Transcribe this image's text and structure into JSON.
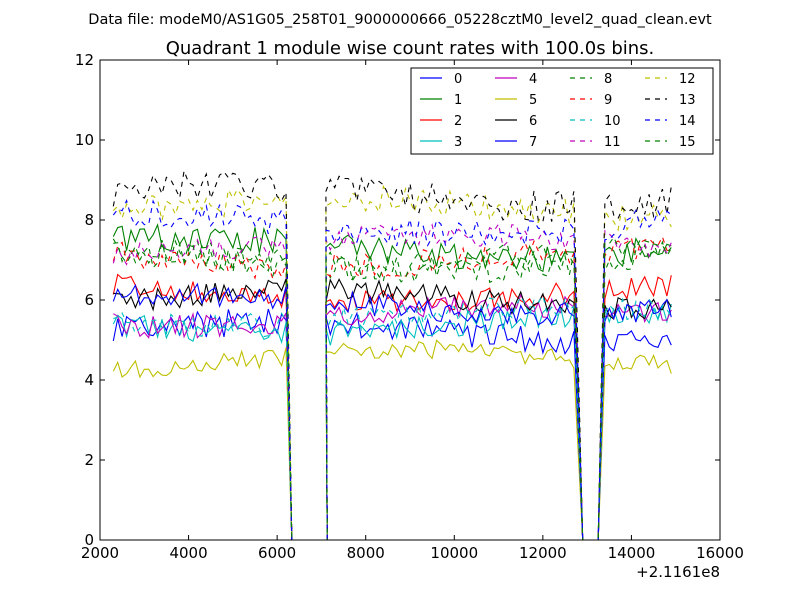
{
  "figure": {
    "suptitle": "Data file: modeM0/AS1G05_258T01_9000000666_05228cztM0_level2_quad_clean.evt"
  },
  "chart_data": {
    "type": "line",
    "title": "Quadrant 1 module wise count rates with 100.0s bins.",
    "xlabel": "",
    "ylabel": "",
    "x_offset_label": "+2.1161e8",
    "xlim": [
      2000,
      16000
    ],
    "ylim": [
      0,
      12
    ],
    "x_ticks": [
      2000,
      4000,
      6000,
      8000,
      10000,
      12000,
      14000,
      16000
    ],
    "x_tick_labels": [
      "2000",
      "4000",
      "6000",
      "8000",
      "10000",
      "12000",
      "14000",
      "16000"
    ],
    "y_ticks": [
      0,
      2,
      4,
      6,
      8,
      10,
      12
    ],
    "y_tick_labels": [
      "0",
      "2",
      "4",
      "6",
      "8",
      "10",
      "12"
    ],
    "grid": false,
    "legend_placement": "top-right",
    "legend_columns": 4,
    "bin_seconds": 100,
    "segments": [
      {
        "start": 2300,
        "end": 6200
      },
      {
        "start": 7100,
        "end": 12700
      },
      {
        "start": 13400,
        "end": 14950
      }
    ],
    "gaps": [
      {
        "drop_start": 6200,
        "zero_start": 6330,
        "zero_end": 7130
      },
      {
        "drop_start": 12700,
        "zero_start": 12900,
        "zero_end": 13250
      }
    ],
    "series": [
      {
        "name": "0",
        "color": "#0000ff",
        "dashed": false,
        "level": 5.2,
        "noise": 0.35
      },
      {
        "name": "1",
        "color": "#008000",
        "dashed": false,
        "level": 7.3,
        "noise": 0.35
      },
      {
        "name": "2",
        "color": "#ff0000",
        "dashed": false,
        "level": 6.2,
        "noise": 0.3
      },
      {
        "name": "3",
        "color": "#00bfbf",
        "dashed": false,
        "level": 5.4,
        "noise": 0.3
      },
      {
        "name": "4",
        "color": "#bf00bf",
        "dashed": false,
        "level": 5.6,
        "noise": 0.3
      },
      {
        "name": "5",
        "color": "#bfbf00",
        "dashed": false,
        "level": 4.5,
        "noise": 0.25
      },
      {
        "name": "6",
        "color": "#000000",
        "dashed": false,
        "level": 6.0,
        "noise": 0.3
      },
      {
        "name": "7",
        "color": "#0000ff",
        "dashed": false,
        "level": 5.9,
        "noise": 0.3
      },
      {
        "name": "8",
        "color": "#008000",
        "dashed": true,
        "level": 7.0,
        "noise": 0.35
      },
      {
        "name": "9",
        "color": "#ff0000",
        "dashed": true,
        "level": 7.1,
        "noise": 0.35
      },
      {
        "name": "10",
        "color": "#00bfbf",
        "dashed": true,
        "level": 5.6,
        "noise": 0.3
      },
      {
        "name": "11",
        "color": "#bf00bf",
        "dashed": true,
        "level": 7.4,
        "noise": 0.3
      },
      {
        "name": "12",
        "color": "#bfbf00",
        "dashed": true,
        "level": 8.3,
        "noise": 0.35
      },
      {
        "name": "13",
        "color": "#000000",
        "dashed": true,
        "level": 8.6,
        "noise": 0.4
      },
      {
        "name": "14",
        "color": "#0000ff",
        "dashed": true,
        "level": 7.9,
        "noise": 0.35
      },
      {
        "name": "15",
        "color": "#008000",
        "dashed": true,
        "level": 7.1,
        "noise": 0.35
      }
    ]
  }
}
